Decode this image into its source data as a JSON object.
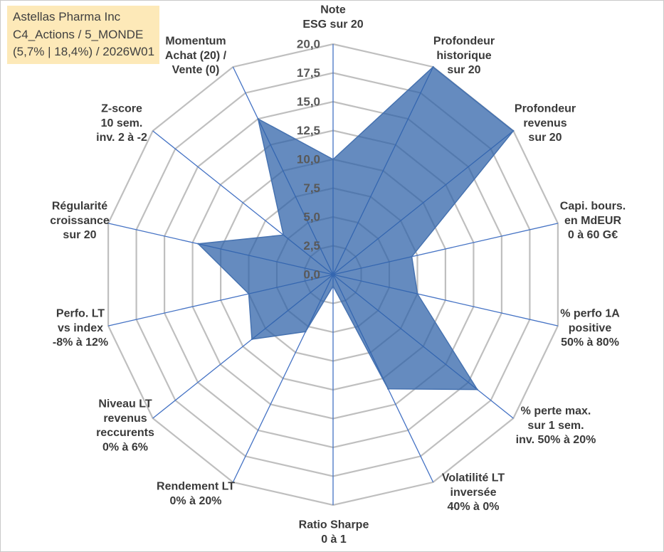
{
  "title_box": {
    "lines": [
      "Astellas Pharma Inc",
      "C4_Actions / 5_MONDE",
      "(5,7% | 18,4%) / 2026W01"
    ]
  },
  "colors": {
    "title_bg": "#fde9b8",
    "title_text": "#404040",
    "series_fill": "#2f62a8",
    "series_line": "#4672b0",
    "axis": "#4472c4",
    "grid": "#bfbfbf",
    "label_text": "#3a3a3a",
    "tick_text": "#595959",
    "border": "#c9c9c9"
  },
  "chart_data": {
    "type": "radar",
    "categories": [
      [
        "Note",
        "ESG sur 20"
      ],
      [
        "Profondeur",
        "historique",
        "sur 20"
      ],
      [
        "Profondeur",
        "revenus",
        "sur 20"
      ],
      [
        "Capi. bours.",
        "en MdEUR",
        "0 à 60 G€"
      ],
      [
        "% perfo 1A",
        "positive",
        "50% à 80%"
      ],
      [
        "% perte max.",
        "sur 1 sem.",
        "inv. 50% à 20%"
      ],
      [
        "Volatilité LT",
        "inversée",
        "40% à 0%"
      ],
      [
        "Ratio Sharpe",
        "0 à 1"
      ],
      [
        "Rendement LT",
        "0% à 20%"
      ],
      [
        "Niveau LT",
        "revenus",
        "reccurents",
        "0% à 6%"
      ],
      [
        "Perfo. LT",
        "vs index",
        "-8% à 12%"
      ],
      [
        "Régularité",
        "croissance",
        "sur 20"
      ],
      [
        "Z-score",
        "10 sem.",
        "inv. 2 à -2"
      ],
      [
        "Momentum",
        "Achat (20) /",
        "Vente (0)"
      ]
    ],
    "series": [
      {
        "values": [
          10,
          20,
          20,
          7,
          7.5,
          16,
          11,
          1,
          5.5,
          9,
          7.5,
          12,
          5.5,
          15
        ]
      }
    ],
    "rlim": [
      0,
      20
    ],
    "r_ticks": [
      0,
      2.5,
      5,
      7.5,
      10,
      12.5,
      15,
      17.5,
      20
    ],
    "r_tick_labels": [
      "0,0",
      "2,5",
      "5,0",
      "7,5",
      "10,0",
      "12,5",
      "15,0",
      "17,5",
      "20,0"
    ],
    "grid": true
  }
}
